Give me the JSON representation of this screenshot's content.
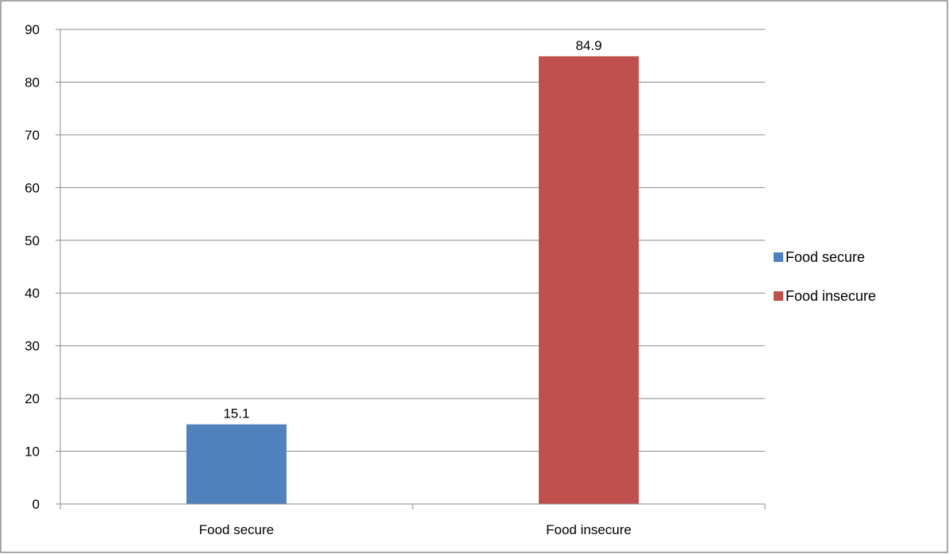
{
  "chart_data": {
    "type": "bar",
    "categories": [
      "Food secure",
      "Food insecure"
    ],
    "values": [
      15.1,
      84.9
    ],
    "colors": [
      "#4f81bd",
      "#c0504d"
    ],
    "data_labels": [
      "15.1",
      "84.9"
    ],
    "ylim": [
      0,
      90
    ],
    "y_ticks": [
      0,
      10,
      20,
      30,
      40,
      50,
      60,
      70,
      80,
      90
    ],
    "grid": true,
    "legend": {
      "placement": "right",
      "entries": [
        {
          "label": "Food secure",
          "color": "#4f81bd"
        },
        {
          "label": "Food insecure",
          "color": "#c0504d"
        }
      ]
    }
  }
}
